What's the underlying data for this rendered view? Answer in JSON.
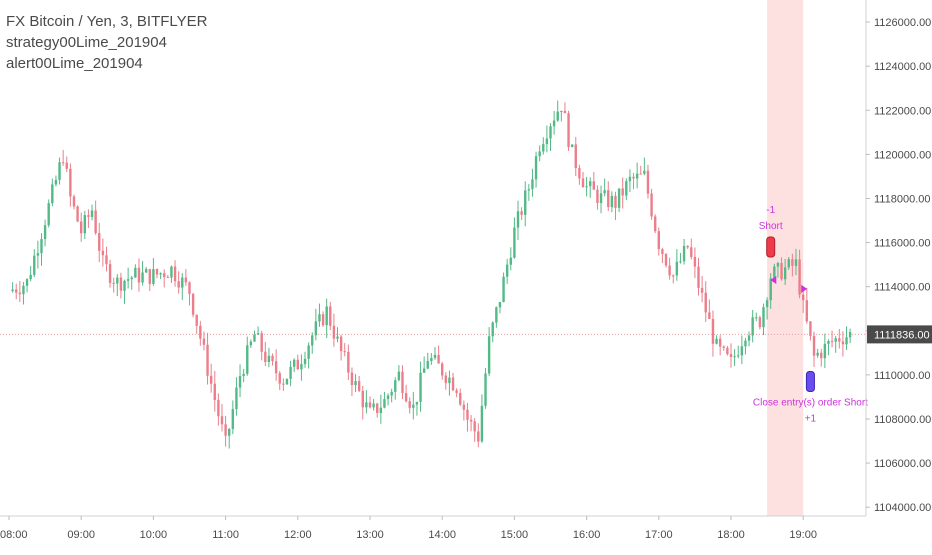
{
  "legend": {
    "symbol": "FX Bitcoin / Yen, 3, BITFLYER",
    "strategy": "strategy00Lime_201904",
    "alert": "alert00Lime_201904"
  },
  "colors": {
    "up": "#53b987",
    "down": "#eb7e8a",
    "highlight": "#fde0e0",
    "signal": "#cc33dd",
    "short_marker": "#ef3a4a",
    "close_marker": "#6a4df0",
    "price_line": "#e8a0a0",
    "axis_text": "#4a4a4a"
  },
  "chart_data": {
    "type": "candlestick",
    "title": "FX Bitcoin / Yen, 3, BITFLYER",
    "interval": "3",
    "ylim": [
      1103600,
      1127000
    ],
    "y_ticks": [
      "1126000.00",
      "1124000.00",
      "1122000.00",
      "1120000.00",
      "1118000.00",
      "1116000.00",
      "1114000.00",
      "1112000.00",
      "1110000.00",
      "1108000.00",
      "1106000.00",
      "1104000.00"
    ],
    "x_ticks": [
      "08:00",
      "09:00",
      "10:00",
      "11:00",
      "12:00",
      "13:00",
      "14:00",
      "15:00",
      "16:00",
      "17:00",
      "18:00",
      "19:00"
    ],
    "time_start": "08:00",
    "candle_minutes": 3,
    "last_price": 1111836,
    "last_price_label": "1111836.00",
    "highlight_range": [
      "18:30",
      "19:00"
    ],
    "close_path": [
      [
        "08:00",
        1113800
      ],
      [
        "08:15",
        1114200
      ],
      [
        "08:27",
        1116500
      ],
      [
        "08:36",
        1118200
      ],
      [
        "08:45",
        1120000
      ],
      [
        "08:51",
        1118000
      ],
      [
        "09:00",
        1116500
      ],
      [
        "09:09",
        1117500
      ],
      [
        "09:18",
        1115000
      ],
      [
        "09:30",
        1114200
      ],
      [
        "09:45",
        1114500
      ],
      [
        "10:00",
        1114500
      ],
      [
        "10:15",
        1114800
      ],
      [
        "10:30",
        1113800
      ],
      [
        "10:45",
        1110300
      ],
      [
        "11:00",
        1106800
      ],
      [
        "11:12",
        1110000
      ],
      [
        "11:24",
        1111800
      ],
      [
        "11:36",
        1110500
      ],
      [
        "11:48",
        1109800
      ],
      [
        "12:00",
        1110500
      ],
      [
        "12:12",
        1111800
      ],
      [
        "12:24",
        1112900
      ],
      [
        "12:36",
        1111000
      ],
      [
        "12:48",
        1109500
      ],
      [
        "13:00",
        1108200
      ],
      [
        "13:12",
        1108800
      ],
      [
        "13:24",
        1110000
      ],
      [
        "13:36",
        1108500
      ],
      [
        "13:48",
        1110800
      ],
      [
        "14:00",
        1110200
      ],
      [
        "14:12",
        1109500
      ],
      [
        "14:21",
        1108000
      ],
      [
        "14:30",
        1107200
      ],
      [
        "14:39",
        1111500
      ],
      [
        "14:48",
        1113500
      ],
      [
        "15:00",
        1116500
      ],
      [
        "15:12",
        1118500
      ],
      [
        "15:21",
        1120500
      ],
      [
        "15:30",
        1121500
      ],
      [
        "15:39",
        1122300
      ],
      [
        "15:48",
        1120000
      ],
      [
        "16:00",
        1118500
      ],
      [
        "16:12",
        1118000
      ],
      [
        "16:24",
        1117800
      ],
      [
        "16:36",
        1118800
      ],
      [
        "16:48",
        1119000
      ],
      [
        "17:00",
        1116000
      ],
      [
        "17:12",
        1114500
      ],
      [
        "17:24",
        1115800
      ],
      [
        "17:36",
        1113500
      ],
      [
        "17:48",
        1111200
      ],
      [
        "18:00",
        1110500
      ],
      [
        "18:12",
        1112000
      ],
      [
        "18:24",
        1112500
      ],
      [
        "18:33",
        1114500
      ],
      [
        "18:45",
        1114800
      ],
      [
        "18:54",
        1115000
      ],
      [
        "19:00",
        1113000
      ],
      [
        "19:09",
        1110800
      ],
      [
        "19:24",
        1111500
      ],
      [
        "19:30",
        1111700
      ],
      [
        "19:39",
        1111836
      ]
    ],
    "markers": [
      {
        "type": "short",
        "time": "18:33",
        "price": 1115800,
        "label_top": "-1",
        "label": "Short"
      },
      {
        "type": "close",
        "time": "19:06",
        "price": 1109700,
        "label": "Close entry(s) order Short",
        "label_bottom": "+1"
      }
    ],
    "signals": [
      {
        "time": "18:36",
        "price": 1114300,
        "direction": "left"
      },
      {
        "time": "19:00",
        "price": 1113900,
        "direction": "right"
      }
    ]
  }
}
